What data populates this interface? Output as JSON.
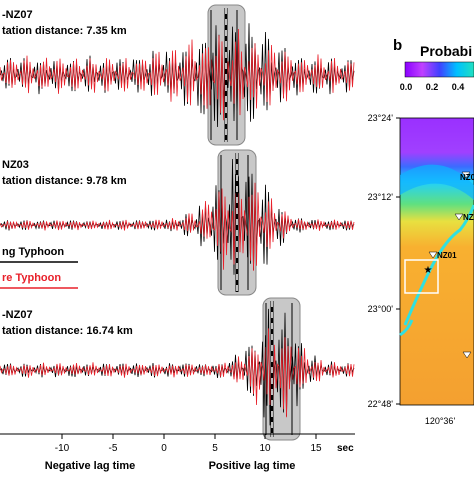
{
  "panel_a": {
    "traces": [
      {
        "station": "-NZ07",
        "distance": "tation distance: 7.35 km"
      },
      {
        "station": "NZ03",
        "distance": "tation distance: 9.78 km"
      },
      {
        "station": "-NZ07",
        "distance": "tation distance: 16.74 km"
      }
    ],
    "legend": [
      "ng Typhoon",
      "re Typhoon"
    ],
    "x_ticks": [
      "-10",
      "-5",
      "0",
      "5",
      "10",
      "15"
    ],
    "x_unit": "sec",
    "x_labels": [
      "Negative lag time",
      "Positive lag time"
    ]
  },
  "panel_b": {
    "label": "b",
    "title": "Probabi",
    "colorbar_ticks": [
      "0.0",
      "0.2",
      "0.4"
    ],
    "lat_ticks": [
      "23°24'",
      "23°12'",
      "23°00'",
      "22°48'"
    ],
    "lon_ticks": [
      "120°36'"
    ],
    "stations": [
      "NZ0",
      "NZ",
      "NZ01"
    ]
  }
}
